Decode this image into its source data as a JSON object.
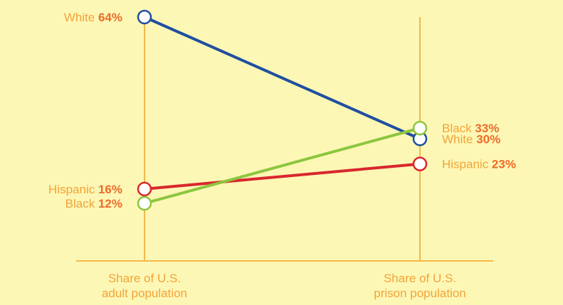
{
  "chart_data": {
    "type": "line",
    "subtype": "slope",
    "categories": [
      [
        "Share of U.S.",
        "adult population"
      ],
      [
        "Share of U.S.",
        "prison population"
      ]
    ],
    "unit": "%",
    "series": [
      {
        "name": "White",
        "values": [
          64,
          30
        ],
        "color": "#1f4fa0"
      },
      {
        "name": "Hispanic",
        "values": [
          16,
          23
        ],
        "color": "#d9272e"
      },
      {
        "name": "Black",
        "values": [
          12,
          33
        ],
        "color": "#8cc63f"
      }
    ],
    "grid": false,
    "legend": "none"
  },
  "colors": {
    "background": "#fdf7b5",
    "axis": "#f2b84b",
    "label_text": "#f2a33a",
    "label_value": "#ef6b2a"
  }
}
